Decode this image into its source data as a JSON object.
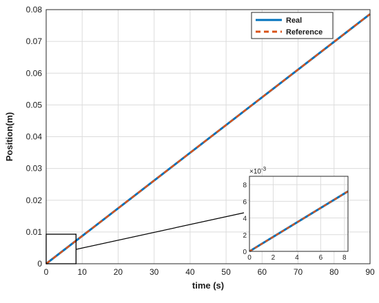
{
  "chart_data": [
    {
      "type": "line",
      "xlabel": "time (s)",
      "ylabel": "Position(m)",
      "xlim": [
        0,
        90
      ],
      "ylim": [
        0,
        0.08
      ],
      "x_ticks": [
        "0",
        "10",
        "20",
        "30",
        "40",
        "50",
        "60",
        "70",
        "80",
        "90"
      ],
      "y_ticks": [
        "0",
        "0.01",
        "0.02",
        "0.03",
        "0.04",
        "0.05",
        "0.06",
        "0.07",
        "0.08"
      ],
      "grid": true,
      "legend_position": "top-right",
      "series": [
        {
          "name": "Real",
          "color": "#0072BD",
          "style": "solid",
          "x": [
            0,
            90
          ],
          "y": [
            0,
            0.0786
          ]
        },
        {
          "name": "Reference",
          "color": "#D95319",
          "style": "dashed",
          "x": [
            0,
            90
          ],
          "y": [
            0,
            0.0786
          ]
        }
      ],
      "zoom_region": {
        "xlim": [
          0,
          8.3
        ],
        "ylim": [
          0,
          0.0093
        ]
      }
    },
    {
      "type": "line",
      "role": "inset",
      "xlim": [
        0,
        8.3
      ],
      "ylim": [
        0,
        9
      ],
      "exponent_label": "×10",
      "exponent_power": "-3",
      "x_ticks": [
        "0",
        "2",
        "4",
        "6",
        "8"
      ],
      "y_ticks": [
        "0",
        "2",
        "4",
        "6",
        "8"
      ],
      "grid": true,
      "series": [
        {
          "name": "Real",
          "color": "#0072BD",
          "style": "solid",
          "x": [
            0,
            8.3
          ],
          "y": [
            0,
            7.2
          ]
        },
        {
          "name": "Reference",
          "color": "#D95319",
          "style": "dashed",
          "x": [
            0,
            8.3
          ],
          "y": [
            0,
            7.2
          ]
        }
      ]
    }
  ]
}
